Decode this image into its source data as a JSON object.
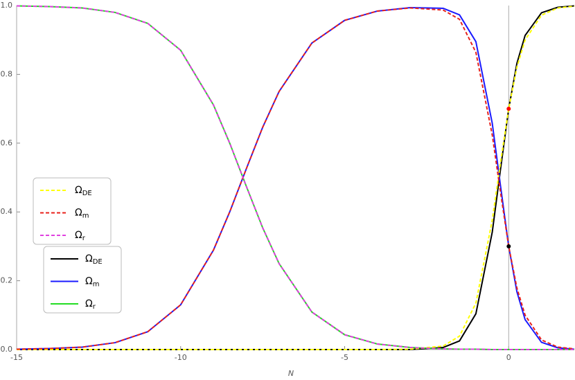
{
  "chart_data": {
    "type": "line",
    "x_label": "N",
    "x": [
      -15,
      -14,
      -13,
      -12,
      -11,
      -10,
      -9,
      -8.5,
      -8,
      -7.5,
      -7,
      -6,
      -5,
      -4,
      -3,
      -2,
      -1.5,
      -1,
      -0.5,
      -0.25,
      0,
      0.25,
      0.5,
      1,
      1.5,
      2
    ],
    "xlim": [
      -15,
      2
    ],
    "xticks": [
      -15,
      -10,
      -5,
      0
    ],
    "ylim": [
      0,
      1
    ],
    "yticks": [
      {
        "value": 0,
        "label": "0.0"
      },
      0.2,
      0.4,
      0.6,
      0.8,
      {
        "value": 1,
        "label": "1.0"
      }
    ],
    "series": [
      {
        "name": "ΩDE",
        "color": "#000000",
        "dashed": false,
        "values": [
          0,
          0,
          0,
          0,
          0,
          0,
          0,
          0,
          0,
          0,
          0,
          0,
          0,
          0,
          0,
          0.006,
          0.025,
          0.104,
          0.342,
          0.524,
          0.7,
          0.832,
          0.913,
          0.979,
          0.995,
          0.999
        ]
      },
      {
        "name": "Ωm",
        "color": "#1a1aff",
        "dashed": false,
        "values": [
          0.001,
          0.003,
          0.007,
          0.02,
          0.052,
          0.13,
          0.289,
          0.401,
          0.525,
          0.646,
          0.75,
          0.891,
          0.957,
          0.984,
          0.994,
          0.992,
          0.973,
          0.895,
          0.657,
          0.476,
          0.3,
          0.168,
          0.087,
          0.021,
          0.005,
          0.001
        ]
      },
      {
        "name": "Ωr",
        "color": "#22dd22",
        "dashed": false,
        "values": [
          0.999,
          0.997,
          0.993,
          0.98,
          0.948,
          0.87,
          0.711,
          0.599,
          0.475,
          0.354,
          0.25,
          0.109,
          0.043,
          0.016,
          0.006,
          0.002,
          0.001,
          0.001,
          0,
          0,
          0,
          0,
          0,
          0,
          0,
          0
        ]
      },
      {
        "name": "ΩDE",
        "color": "#ffff00",
        "dashed": true,
        "values": [
          0,
          0,
          0,
          0,
          0,
          0,
          0,
          0,
          0,
          0,
          0,
          0,
          0,
          0,
          0.001,
          0.01,
          0.039,
          0.135,
          0.377,
          0.543,
          0.7,
          0.821,
          0.9,
          0.972,
          0.993,
          0.998
        ]
      },
      {
        "name": "Ωm",
        "color": "#e8211b",
        "dashed": true,
        "values": [
          0.001,
          0.003,
          0.007,
          0.02,
          0.052,
          0.13,
          0.289,
          0.401,
          0.525,
          0.646,
          0.75,
          0.891,
          0.957,
          0.984,
          0.993,
          0.987,
          0.96,
          0.864,
          0.623,
          0.457,
          0.3,
          0.179,
          0.1,
          0.028,
          0.007,
          0.002
        ]
      },
      {
        "name": "Ωr",
        "color": "#e040e0",
        "dashed": true,
        "values": [
          0.999,
          0.997,
          0.993,
          0.98,
          0.948,
          0.87,
          0.711,
          0.599,
          0.475,
          0.354,
          0.25,
          0.109,
          0.043,
          0.016,
          0.006,
          0.002,
          0.001,
          0.001,
          0,
          0,
          0,
          0,
          0,
          0,
          0,
          0
        ]
      }
    ],
    "points": [
      {
        "x": 0,
        "y": 0.7,
        "color": "#ff0000"
      },
      {
        "x": 0,
        "y": 0.3,
        "color": "#000000"
      }
    ]
  }
}
